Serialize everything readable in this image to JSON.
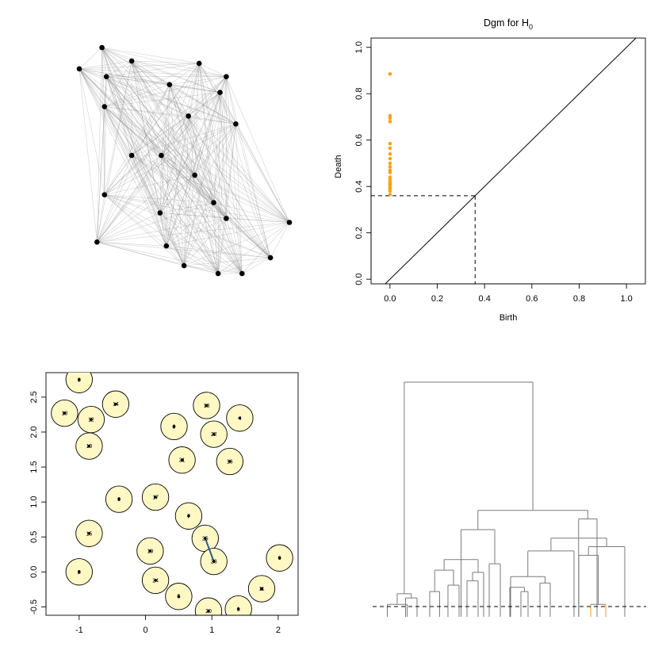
{
  "colors": {
    "point": "#000000",
    "edge": "#808080",
    "diag_point": "#ff9e00",
    "ball_fill": "#fff8c4",
    "ball_stroke": "#000000",
    "link": "#2f5a8a",
    "dendro_line": "#7a7a7a",
    "dendro_highlight": "#ff9e00",
    "dashed": "#000000"
  },
  "chart_data": [
    {
      "type": "network",
      "points": [
        [
          -0.92,
          2.82
        ],
        [
          -1.28,
          2.55
        ],
        [
          -0.85,
          2.45
        ],
        [
          -0.45,
          2.65
        ],
        [
          -0.88,
          2.07
        ],
        [
          0.62,
          2.62
        ],
        [
          1.05,
          2.45
        ],
        [
          0.15,
          2.35
        ],
        [
          0.95,
          2.25
        ],
        [
          0.45,
          1.95
        ],
        [
          1.2,
          1.85
        ],
        [
          -0.45,
          1.45
        ],
        [
          0.02,
          1.45
        ],
        [
          0.55,
          1.2
        ],
        [
          -0.88,
          0.95
        ],
        [
          0.85,
          0.85
        ],
        [
          0.0,
          0.72
        ],
        [
          1.05,
          0.65
        ],
        [
          2.05,
          0.6
        ],
        [
          -1.0,
          0.35
        ],
        [
          0.1,
          0.3
        ],
        [
          1.75,
          0.15
        ],
        [
          0.38,
          0.05
        ],
        [
          0.92,
          -0.05
        ],
        [
          1.3,
          -0.05
        ]
      ],
      "edges": "all pairs within filtration radius"
    },
    {
      "type": "scatter",
      "title": "Dgm for H",
      "title_subscript": "0",
      "xlabel": "Birth",
      "ylabel": "Death",
      "xlim": [
        -0.08,
        1.08
      ],
      "ylim": [
        -0.02,
        1.04
      ],
      "x_ticks": [
        "0.0",
        "0.2",
        "0.4",
        "0.6",
        "0.8",
        "1.0"
      ],
      "y_ticks": [
        "0.0",
        "0.2",
        "0.4",
        "0.6",
        "0.8",
        "1.0"
      ],
      "points_x": [
        0,
        0,
        0,
        0,
        0,
        0,
        0,
        0,
        0,
        0,
        0,
        0,
        0,
        0,
        0,
        0,
        0,
        0,
        0,
        0,
        0,
        0
      ],
      "points_y": [
        0.885,
        0.705,
        0.695,
        0.68,
        0.585,
        0.565,
        0.54,
        0.52,
        0.5,
        0.485,
        0.47,
        0.46,
        0.44,
        0.43,
        0.42,
        0.415,
        0.41,
        0.405,
        0.395,
        0.39,
        0.38,
        0.365
      ],
      "diagonal": true,
      "threshold": 0.36
    },
    {
      "type": "scatter",
      "xlim": [
        -1.5,
        2.3
      ],
      "ylim": [
        -0.62,
        2.85
      ],
      "x_ticks": [
        "-1",
        "0",
        "1",
        "2"
      ],
      "y_ticks": [
        "-0.5",
        "0.0",
        "0.5",
        "1.0",
        "1.5",
        "2.0",
        "2.5"
      ],
      "radius": 0.2,
      "points": [
        {
          "x": -1.0,
          "y": 2.75,
          "label": "3"
        },
        {
          "x": -1.22,
          "y": 2.27,
          "label": "18"
        },
        {
          "x": -0.82,
          "y": 2.18,
          "label": "12"
        },
        {
          "x": -0.45,
          "y": 2.4,
          "label": "14"
        },
        {
          "x": -0.85,
          "y": 1.8,
          "label": "10"
        },
        {
          "x": 0.43,
          "y": 2.08,
          "label": "8"
        },
        {
          "x": 0.92,
          "y": 2.38,
          "label": "13"
        },
        {
          "x": 1.42,
          "y": 2.2,
          "label": "4"
        },
        {
          "x": 1.03,
          "y": 1.97,
          "label": "22"
        },
        {
          "x": 0.55,
          "y": 1.6,
          "label": "21"
        },
        {
          "x": 1.27,
          "y": 1.58,
          "label": "16"
        },
        {
          "x": -0.4,
          "y": 1.04,
          "label": "9"
        },
        {
          "x": 0.15,
          "y": 1.07,
          "label": "17"
        },
        {
          "x": 0.65,
          "y": 0.8,
          "label": "7"
        },
        {
          "x": -0.85,
          "y": 0.55,
          "label": "15"
        },
        {
          "x": 0.9,
          "y": 0.48,
          "label": "25"
        },
        {
          "x": 0.07,
          "y": 0.3,
          "label": "19"
        },
        {
          "x": 1.03,
          "y": 0.15,
          "label": "23"
        },
        {
          "x": 2.02,
          "y": 0.2,
          "label": "6"
        },
        {
          "x": -1.0,
          "y": 0.0,
          "label": "2"
        },
        {
          "x": 0.15,
          "y": -0.12,
          "label": "24"
        },
        {
          "x": 1.75,
          "y": -0.24,
          "label": "11"
        },
        {
          "x": 0.5,
          "y": -0.35,
          "label": "5"
        },
        {
          "x": 0.95,
          "y": -0.56,
          "label": "20"
        },
        {
          "x": 1.4,
          "y": -0.53,
          "label": "1"
        }
      ],
      "link": [
        "25",
        "23"
      ]
    },
    {
      "type": "dendrogram",
      "merge_heights": [
        0.885,
        0.705,
        0.695,
        0.68,
        0.585,
        0.565,
        0.54,
        0.52,
        0.5,
        0.485,
        0.47,
        0.46,
        0.44,
        0.43,
        0.42,
        0.415,
        0.41,
        0.405,
        0.395,
        0.39,
        0.38,
        0.365,
        0.36
      ],
      "threshold": 0.36
    }
  ]
}
